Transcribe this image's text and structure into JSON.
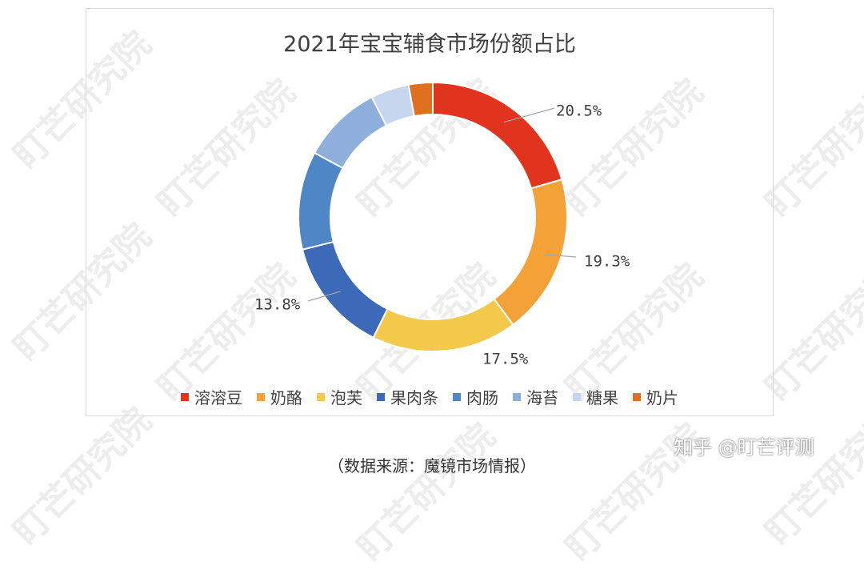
{
  "chart_data": {
    "type": "pie",
    "title": "2021年宝宝辅食市场份额占比",
    "categories": [
      "溶溶豆",
      "奶酪",
      "泡芙",
      "果肉条",
      "肉肠",
      "海苔",
      "糖果",
      "奶片"
    ],
    "values": [
      20.5,
      19.3,
      17.5,
      13.8,
      11.8,
      9.6,
      4.6,
      2.9
    ],
    "data_labels": [
      "20.5%",
      "19.3%",
      "17.5%",
      "13.8%",
      "",
      "",
      "",
      ""
    ],
    "colors": [
      "#e1341e",
      "#f4a238",
      "#f2c94a",
      "#3c6ab8",
      "#4f86c6",
      "#8eaedb",
      "#c6d6ee",
      "#e07020"
    ],
    "legend_position": "bottom",
    "donut": true
  },
  "source_note": "（数据来源：魔镜市场情报）",
  "brand": "知乎 @盯芒评测",
  "watermark_text": "盯芒研究院"
}
